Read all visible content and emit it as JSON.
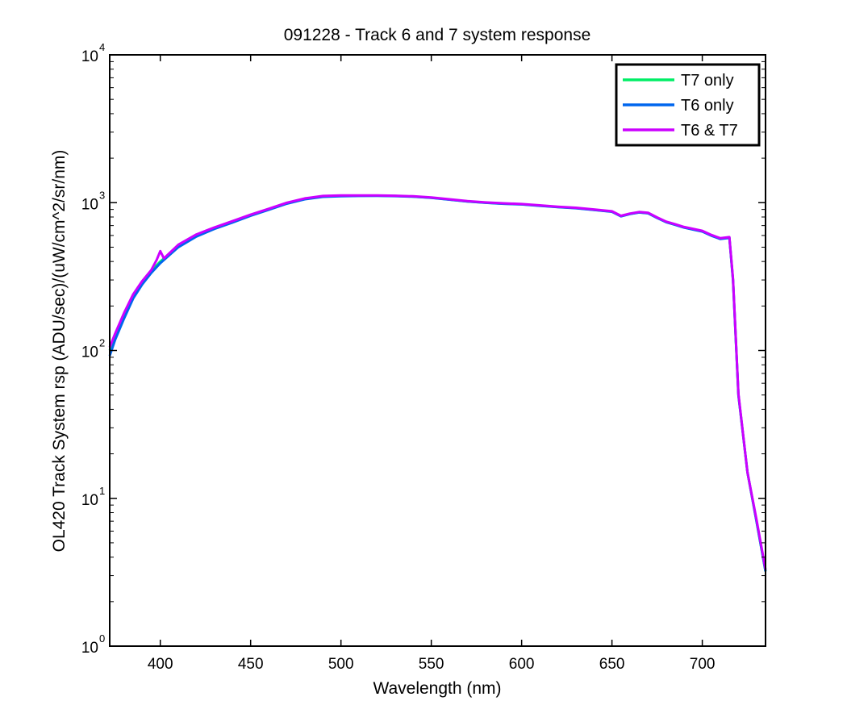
{
  "chart_data": {
    "type": "line",
    "title": "091228 - Track 6 and 7 system response",
    "xlabel": "Wavelength (nm)",
    "ylabel": "OL420 Track System rsp (ADU/sec)/(uW/cm^2/sr/nm)",
    "xlim": [
      372,
      735
    ],
    "ylim": [
      1,
      10000
    ],
    "yscale": "log",
    "x_ticks": [
      400,
      450,
      500,
      550,
      600,
      650,
      700
    ],
    "x_tick_labels": [
      "400",
      "450",
      "500",
      "550",
      "600",
      "650",
      "700"
    ],
    "y_ticks": [
      1,
      10,
      100,
      1000,
      10000
    ],
    "y_tick_labels": [
      {
        "base": "10",
        "exp": "0"
      },
      {
        "base": "10",
        "exp": "1"
      },
      {
        "base": "10",
        "exp": "2"
      },
      {
        "base": "10",
        "exp": "3"
      },
      {
        "base": "10",
        "exp": "4"
      }
    ],
    "grid": false,
    "legend_position": "top-right",
    "series": [
      {
        "name": "T7 only",
        "color": "#00ee66",
        "x": [
          372,
          375,
          380,
          385,
          390,
          395,
          400,
          410,
          420,
          430,
          440,
          450,
          460,
          470,
          480,
          490,
          500,
          510,
          520,
          530,
          540,
          550,
          560,
          570,
          580,
          590,
          600,
          610,
          620,
          630,
          640,
          650,
          655,
          660,
          665,
          670,
          675,
          680,
          685,
          690,
          695,
          700,
          705,
          710,
          715,
          717,
          720,
          725,
          730,
          735
        ],
        "y": [
          100,
          125,
          175,
          235,
          290,
          345,
          400,
          510,
          600,
          670,
          740,
          820,
          900,
          990,
          1060,
          1100,
          1110,
          1115,
          1115,
          1110,
          1100,
          1080,
          1050,
          1020,
          1000,
          985,
          975,
          955,
          935,
          920,
          895,
          870,
          810,
          840,
          860,
          850,
          790,
          740,
          710,
          680,
          660,
          640,
          600,
          570,
          580,
          300,
          50,
          15,
          7,
          3.2
        ]
      },
      {
        "name": "T6 only",
        "color": "#0066ee",
        "x": [
          372,
          375,
          380,
          385,
          390,
          395,
          400,
          410,
          420,
          430,
          440,
          450,
          460,
          470,
          480,
          490,
          500,
          510,
          520,
          530,
          540,
          550,
          560,
          570,
          580,
          590,
          600,
          610,
          620,
          630,
          640,
          650,
          655,
          660,
          665,
          670,
          675,
          680,
          685,
          690,
          695,
          700,
          705,
          710,
          715,
          717,
          720,
          725,
          730,
          735
        ],
        "y": [
          92,
          118,
          165,
          225,
          280,
          335,
          390,
          500,
          590,
          665,
          735,
          815,
          895,
          985,
          1055,
          1095,
          1105,
          1110,
          1112,
          1108,
          1098,
          1078,
          1048,
          1018,
          998,
          983,
          973,
          953,
          933,
          918,
          893,
          868,
          808,
          838,
          858,
          848,
          788,
          738,
          708,
          678,
          658,
          638,
          598,
          568,
          578,
          298,
          50,
          15,
          7,
          3.2
        ]
      },
      {
        "name": "T6 & T7",
        "color": "#cc00ff",
        "x": [
          372,
          375,
          380,
          385,
          390,
          395,
          398,
          400,
          402,
          410,
          420,
          430,
          440,
          450,
          460,
          470,
          480,
          490,
          500,
          510,
          520,
          530,
          540,
          550,
          560,
          570,
          580,
          590,
          600,
          610,
          620,
          630,
          640,
          650,
          655,
          660,
          665,
          670,
          675,
          680,
          685,
          690,
          695,
          700,
          705,
          710,
          715,
          717,
          720,
          725,
          730,
          735
        ],
        "y": [
          105,
          130,
          180,
          240,
          295,
          350,
          410,
          470,
          420,
          520,
          610,
          680,
          750,
          830,
          910,
          1000,
          1070,
          1110,
          1120,
          1120,
          1120,
          1115,
          1105,
          1085,
          1055,
          1025,
          1005,
          990,
          980,
          960,
          940,
          925,
          900,
          875,
          815,
          845,
          865,
          855,
          795,
          745,
          715,
          685,
          665,
          645,
          605,
          575,
          585,
          305,
          51,
          15,
          7.2,
          3.3
        ]
      }
    ]
  }
}
